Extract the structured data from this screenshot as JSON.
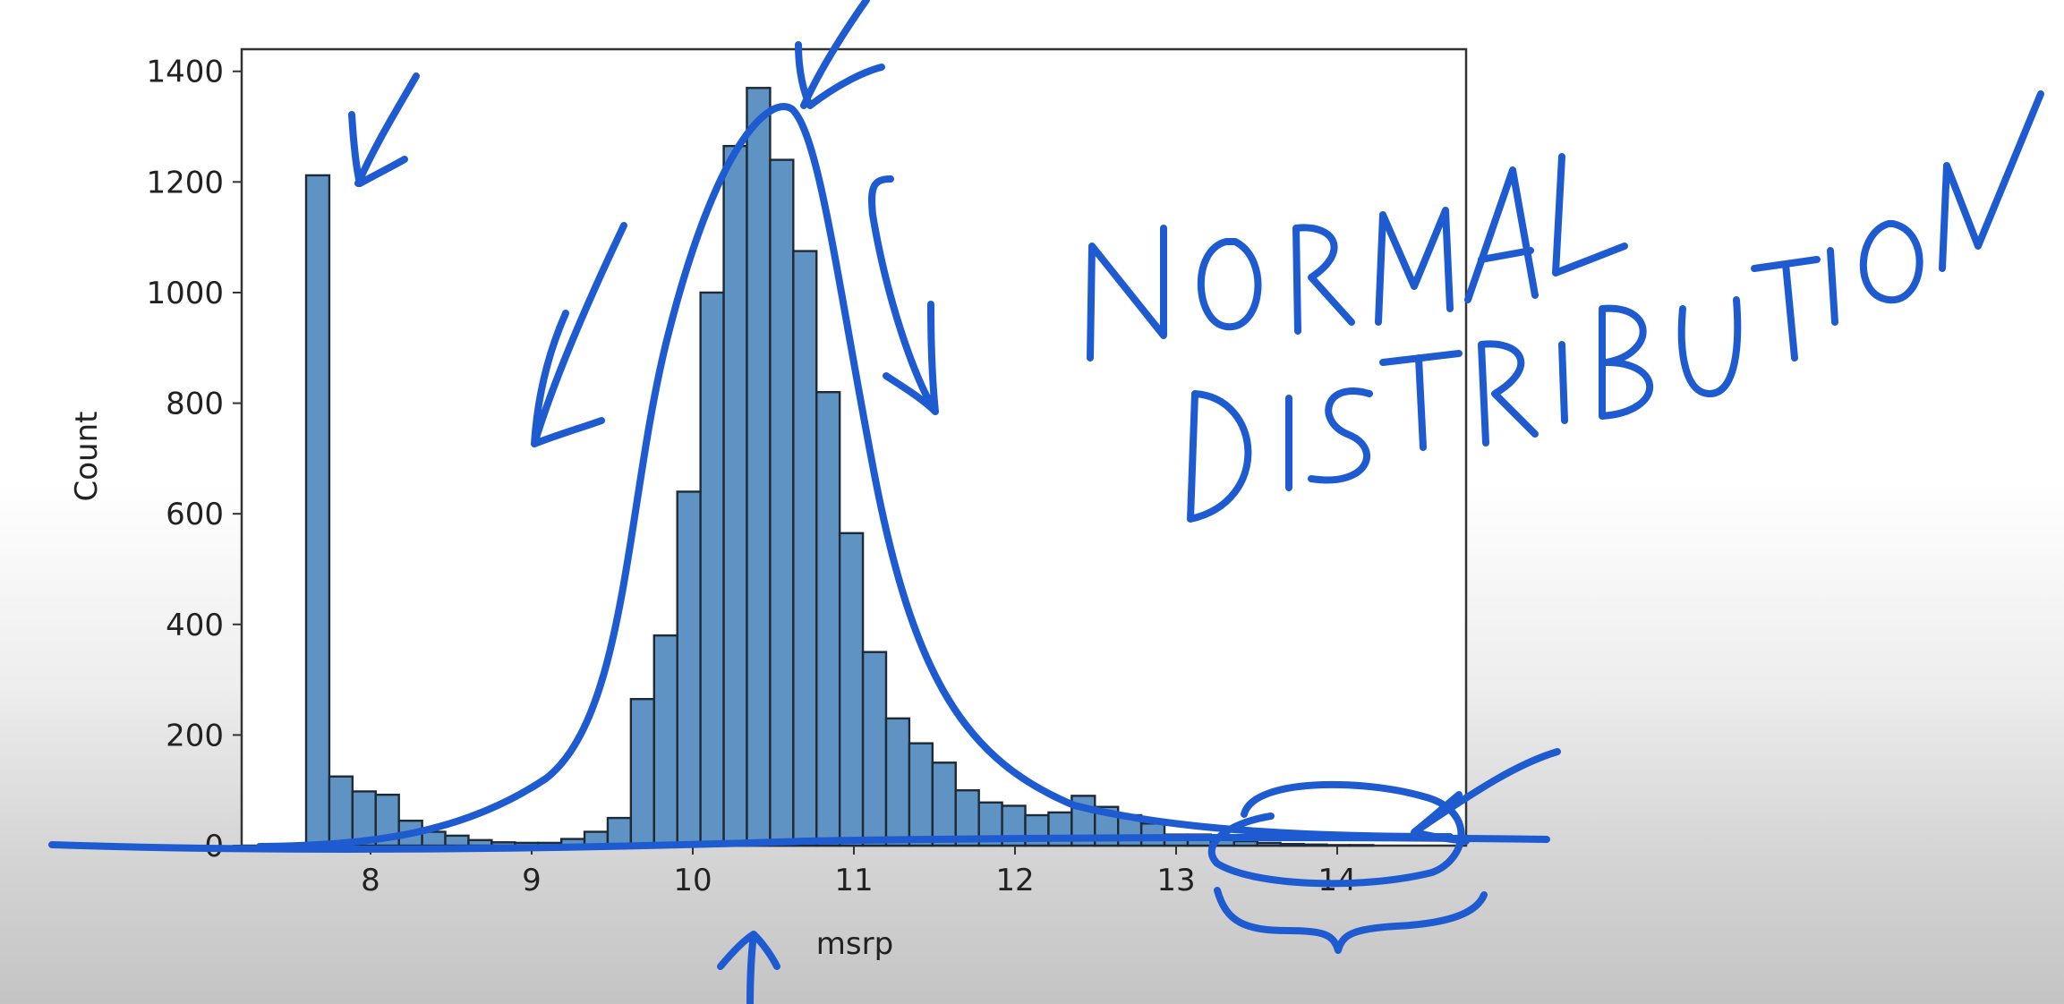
{
  "chart_data": {
    "type": "bar",
    "title": "",
    "xlabel": "msrp",
    "ylabel": "Count",
    "xlim": [
      7.2,
      14.8
    ],
    "ylim": [
      0,
      1440
    ],
    "xticks": [
      8,
      9,
      10,
      11,
      12,
      13,
      14
    ],
    "yticks": [
      0,
      200,
      400,
      600,
      800,
      1000,
      1200,
      1400
    ],
    "bin_width": 0.144,
    "bin_start": 7.6,
    "values": [
      1212,
      125,
      98,
      92,
      45,
      25,
      18,
      10,
      6,
      5,
      5,
      12,
      25,
      50,
      265,
      380,
      640,
      1000,
      1265,
      1370,
      1240,
      1075,
      820,
      565,
      350,
      230,
      185,
      150,
      100,
      78,
      72,
      55,
      60,
      90,
      70,
      55,
      40,
      20,
      20,
      18,
      8,
      5,
      3,
      2,
      1,
      1
    ],
    "grid": false,
    "legend": "none",
    "bar_color": "#5f93c3",
    "edge_color": "#1e2a35",
    "annotations": [
      "NORMAL",
      "DISTRIBUTION"
    ],
    "annotation_color": "#1f5bd0"
  }
}
